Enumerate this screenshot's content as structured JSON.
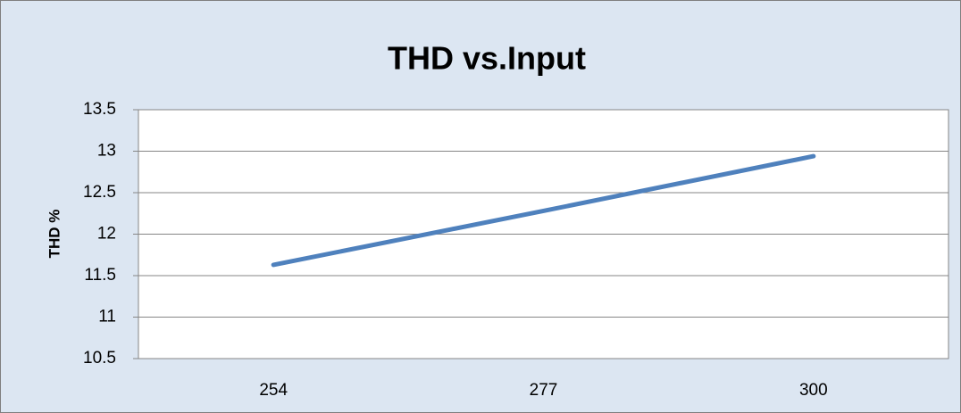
{
  "chart_data": {
    "type": "line",
    "title": "THD vs.Input",
    "y_label": "THD %",
    "categories": [
      "254",
      "277",
      "300"
    ],
    "series": [
      {
        "name": "THD",
        "color": "#4f81bd",
        "values": [
          11.63,
          12.28,
          12.94
        ]
      }
    ],
    "ylim": [
      10.5,
      13.5
    ],
    "yticks": [
      10.5,
      11,
      11.5,
      12,
      12.5,
      13,
      13.5
    ],
    "grid": true
  }
}
